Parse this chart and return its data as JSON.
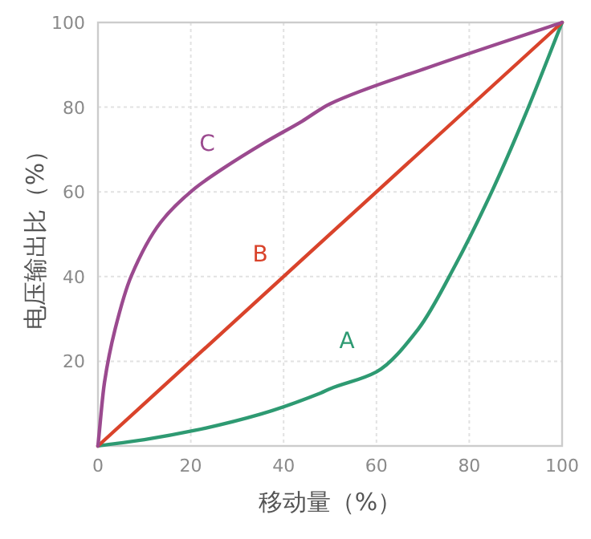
{
  "chart_data": {
    "type": "line",
    "xlabel": "移动量（%）",
    "ylabel": "电压输出比（%）",
    "xlim": [
      0,
      100
    ],
    "ylim": [
      0,
      100
    ],
    "xticks": [
      0,
      20,
      40,
      60,
      80,
      100
    ],
    "yticks": [
      20,
      40,
      60,
      80,
      100
    ],
    "grid": true,
    "marker": "none",
    "line_style": "solid",
    "series": [
      {
        "name": "A",
        "color": "#2e9a72",
        "x": [
          0,
          10,
          21,
          35,
          48,
          50,
          60,
          69,
          77,
          85,
          92,
          100
        ],
        "values": [
          0,
          1.5,
          3.7,
          7.5,
          12.5,
          13.5,
          17.5,
          27.6,
          42.7,
          60.4,
          78,
          100
        ]
      },
      {
        "name": "B",
        "color": "#d9432b",
        "x": [
          0,
          100
        ],
        "values": [
          0,
          100
        ]
      },
      {
        "name": "C",
        "color": "#9b4a8f",
        "x": [
          0,
          1.4,
          3.7,
          7.2,
          13.5,
          20.4,
          26.8,
          36,
          44,
          50,
          71,
          100
        ],
        "values": [
          0,
          15,
          27.6,
          40.2,
          52.8,
          60.4,
          65.4,
          71.7,
          76.7,
          80.8,
          89.3,
          100
        ]
      }
    ]
  }
}
